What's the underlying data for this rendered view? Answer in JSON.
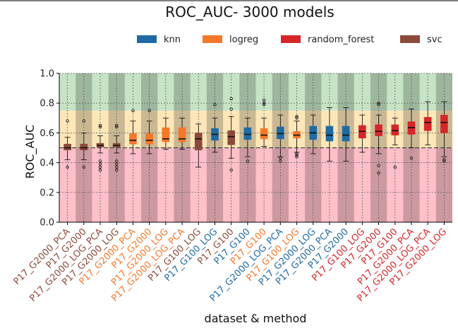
{
  "chart_data": {
    "type": "box",
    "title": "ROC_AUC- 3000 models",
    "xlabel": "dataset & method",
    "ylabel": "ROC_AUC",
    "ylim": [
      0,
      1.0
    ],
    "yticks": [
      0.0,
      0.2,
      0.4,
      0.6,
      0.8,
      1.0
    ],
    "ytick_labels": [
      "0.0",
      "0.2",
      "0.4",
      "0.6",
      "0.8",
      "1.0"
    ],
    "grid": true,
    "legend_position": "top",
    "reference_line": 0.5,
    "bands": [
      {
        "from": 0.0,
        "to": 0.5,
        "color": "#ffc0c8"
      },
      {
        "from": 0.5,
        "to": 0.75,
        "color": "#fde7b8"
      },
      {
        "from": 0.75,
        "to": 1.0,
        "color": "#c6e3c6"
      }
    ],
    "series": [
      {
        "name": "knn",
        "color": "#1f6aa5"
      },
      {
        "name": "logreg",
        "color": "#f5782a"
      },
      {
        "name": "random_forest",
        "color": "#d62728"
      },
      {
        "name": "svc",
        "color": "#8c4a3c"
      }
    ],
    "boxes": [
      {
        "label": "P17_G2000_PCA",
        "series": "svc",
        "q1": 0.485,
        "median": 0.5,
        "q3": 0.525,
        "wlow": 0.42,
        "whigh": 0.57,
        "outliers": [
          0.68,
          0.37
        ]
      },
      {
        "label": "P17_G2000",
        "series": "svc",
        "q1": 0.485,
        "median": 0.5,
        "q3": 0.525,
        "wlow": 0.42,
        "whigh": 0.6,
        "outliers": [
          0.68,
          0.37
        ]
      },
      {
        "label": "P17_G2000_LOG_PCA",
        "series": "svc",
        "q1": 0.505,
        "median": 0.515,
        "q3": 0.53,
        "wlow": 0.465,
        "whigh": 0.58,
        "outliers": [
          0.65,
          0.64,
          0.41,
          0.39,
          0.37,
          0.35
        ]
      },
      {
        "label": "P17_G2000_LOG",
        "series": "svc",
        "q1": 0.505,
        "median": 0.515,
        "q3": 0.53,
        "wlow": 0.465,
        "whigh": 0.58,
        "outliers": [
          0.65,
          0.64,
          0.41,
          0.39,
          0.37,
          0.35
        ]
      },
      {
        "label": "P17_G2000_PCA",
        "series": "logreg",
        "q1": 0.525,
        "median": 0.55,
        "q3": 0.595,
        "wlow": 0.46,
        "whigh": 0.68,
        "outliers": [
          0.75
        ]
      },
      {
        "label": "P17_G2000",
        "series": "logreg",
        "q1": 0.525,
        "median": 0.55,
        "q3": 0.595,
        "wlow": 0.46,
        "whigh": 0.68,
        "outliers": [
          0.75
        ]
      },
      {
        "label": "P17_G2000_LOG",
        "series": "logreg",
        "q1": 0.54,
        "median": 0.56,
        "q3": 0.635,
        "wlow": 0.49,
        "whigh": 0.7,
        "outliers": []
      },
      {
        "label": "P17_G2000_LOG_PCA",
        "series": "logreg",
        "q1": 0.54,
        "median": 0.56,
        "q3": 0.635,
        "wlow": 0.49,
        "whigh": 0.7,
        "outliers": []
      },
      {
        "label": "P17_G100_LOG",
        "series": "svc",
        "q1": 0.485,
        "median": 0.56,
        "q3": 0.6,
        "wlow": 0.37,
        "whigh": 0.66,
        "outliers": []
      },
      {
        "label": "P17_G100_LOG",
        "series": "knn",
        "q1": 0.55,
        "median": 0.59,
        "q3": 0.63,
        "wlow": 0.47,
        "whigh": 0.7,
        "outliers": [
          0.79
        ]
      },
      {
        "label": "P17_G100",
        "series": "svc",
        "q1": 0.52,
        "median": 0.575,
        "q3": 0.615,
        "wlow": 0.43,
        "whigh": 0.71,
        "outliers": [
          0.83,
          0.76,
          0.35
        ]
      },
      {
        "label": "P17_G100",
        "series": "knn",
        "q1": 0.555,
        "median": 0.59,
        "q3": 0.635,
        "wlow": 0.44,
        "whigh": 0.7,
        "outliers": [
          0.41
        ]
      },
      {
        "label": "P17_G100",
        "series": "logreg",
        "q1": 0.56,
        "median": 0.585,
        "q3": 0.63,
        "wlow": 0.51,
        "whigh": 0.7,
        "outliers": [
          0.82,
          0.8,
          0.79
        ]
      },
      {
        "label": "P17_G2000_LOG_PCA",
        "series": "knn",
        "q1": 0.56,
        "median": 0.595,
        "q3": 0.64,
        "wlow": 0.44,
        "whigh": 0.72,
        "outliers": [
          0.43,
          0.41
        ]
      },
      {
        "label": "P17_G100_LOG",
        "series": "logreg",
        "q1": 0.565,
        "median": 0.585,
        "q3": 0.61,
        "wlow": 0.47,
        "whigh": 0.68,
        "outliers": [
          0.71,
          0.7,
          0.46,
          0.45,
          0.44
        ]
      },
      {
        "label": "P17_G2000_LOG",
        "series": "knn",
        "q1": 0.555,
        "median": 0.6,
        "q3": 0.645,
        "wlow": 0.46,
        "whigh": 0.72,
        "outliers": []
      },
      {
        "label": "P17_G2000_PCA",
        "series": "knn",
        "q1": 0.545,
        "median": 0.585,
        "q3": 0.645,
        "wlow": 0.41,
        "whigh": 0.77,
        "outliers": []
      },
      {
        "label": "P17_G2000",
        "series": "knn",
        "q1": 0.545,
        "median": 0.585,
        "q3": 0.645,
        "wlow": 0.41,
        "whigh": 0.77,
        "outliers": []
      },
      {
        "label": "P17_G100_LOG",
        "series": "random_forest",
        "q1": 0.565,
        "median": 0.61,
        "q3": 0.65,
        "wlow": 0.47,
        "whigh": 0.72,
        "outliers": []
      },
      {
        "label": "P17_G2000",
        "series": "random_forest",
        "q1": 0.58,
        "median": 0.61,
        "q3": 0.655,
        "wlow": 0.46,
        "whigh": 0.72,
        "outliers": [
          0.8,
          0.79,
          0.38,
          0.33
        ]
      },
      {
        "label": "P17_G100",
        "series": "random_forest",
        "q1": 0.585,
        "median": 0.615,
        "q3": 0.655,
        "wlow": 0.52,
        "whigh": 0.7,
        "outliers": [
          0.37
        ]
      },
      {
        "label": "P17_G2000_PCA",
        "series": "random_forest",
        "q1": 0.59,
        "median": 0.635,
        "q3": 0.675,
        "wlow": 0.5,
        "whigh": 0.76,
        "outliers": [
          0.43
        ]
      },
      {
        "label": "P17_G2000_LOG_PCA",
        "series": "random_forest",
        "q1": 0.615,
        "median": 0.67,
        "q3": 0.705,
        "wlow": 0.52,
        "whigh": 0.81,
        "outliers": []
      },
      {
        "label": "P17_G2000_LOG",
        "series": "random_forest",
        "q1": 0.6,
        "median": 0.67,
        "q3": 0.72,
        "wlow": 0.44,
        "whigh": 0.81,
        "outliers": [
          0.42,
          0.41
        ]
      }
    ]
  }
}
